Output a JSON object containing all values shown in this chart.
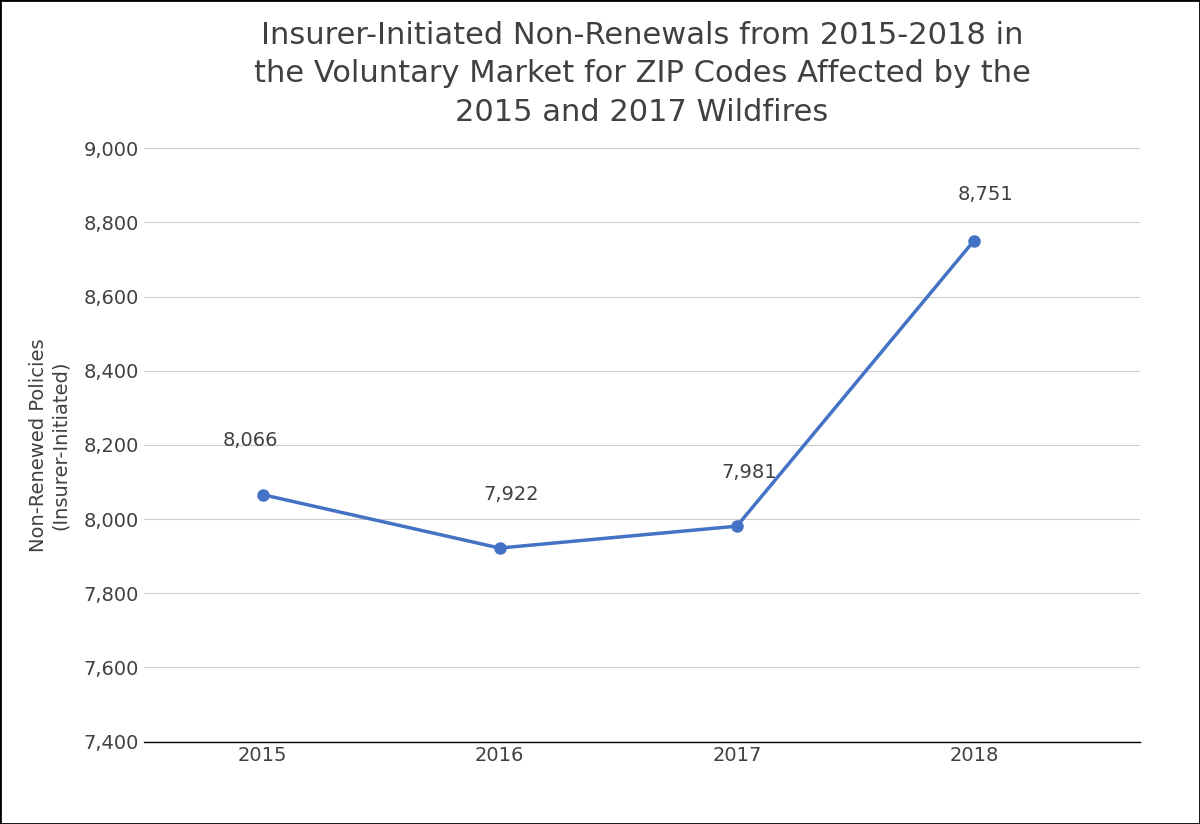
{
  "title": "Insurer-Initiated Non-Renewals from 2015-2018 in\nthe Voluntary Market for ZIP Codes Affected by the\n2015 and 2017 Wildfires",
  "xlabel": "",
  "ylabel": "Non-Renewed Policies\n(Insurer-Initiated)",
  "years": [
    2015,
    2016,
    2017,
    2018
  ],
  "values": [
    8066,
    7922,
    7981,
    8751
  ],
  "labels": [
    "8,066",
    "7,922",
    "7,981",
    "8,751"
  ],
  "line_color": "#4472C4",
  "marker_color": "#4472C4",
  "ylim": [
    7400,
    9000
  ],
  "yticks": [
    7400,
    7600,
    7800,
    8000,
    8200,
    8400,
    8600,
    8800,
    9000
  ],
  "title_fontsize": 22,
  "label_fontsize": 14,
  "tick_fontsize": 14,
  "annotation_fontsize": 14,
  "ylabel_fontsize": 14,
  "background_color": "#ffffff",
  "plot_bg_color": "#ffffff",
  "grid_color": "#cccccc",
  "border_color": "#000000"
}
